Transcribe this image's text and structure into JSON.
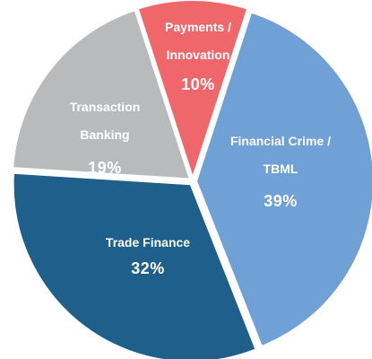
{
  "chart_data": {
    "type": "pie",
    "categories": [
      "Payments / Innovation",
      "Financial Crime / TBML",
      "Trade Finance",
      "Transaction Banking"
    ],
    "values": [
      10,
      39,
      32,
      19
    ],
    "value_labels": [
      "10%",
      "39%",
      "32%",
      "19%"
    ],
    "colors": [
      "#f0676b",
      "#6fa0d6",
      "#1f5f8b",
      "#b9babb"
    ]
  }
}
